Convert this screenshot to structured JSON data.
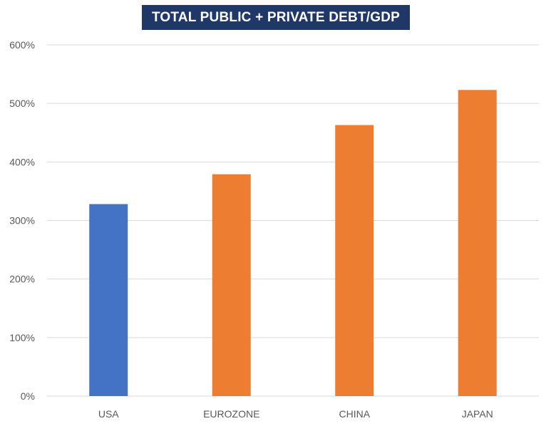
{
  "chart_data": {
    "type": "bar",
    "title": "TOTAL PUBLIC + PRIVATE DEBT/GDP",
    "xlabel": "",
    "ylabel": "",
    "categories": [
      "USA",
      "EUROZONE",
      "CHINA",
      "JAPAN"
    ],
    "values": [
      328,
      379,
      463,
      523
    ],
    "unit": "%",
    "ylim": [
      0,
      600
    ],
    "yticks": [
      "0%",
      "100%",
      "200%",
      "300%",
      "400%",
      "500%",
      "600%"
    ],
    "grid": true,
    "legend": "none",
    "bar_colors": [
      "#4472c4",
      "#ed7d31",
      "#ed7d31",
      "#ed7d31"
    ]
  },
  "colors": {
    "title_background": "#1f3868",
    "title_text": "#ffffff",
    "gridline": "#d9d9d9",
    "axis_text": "#595959"
  }
}
